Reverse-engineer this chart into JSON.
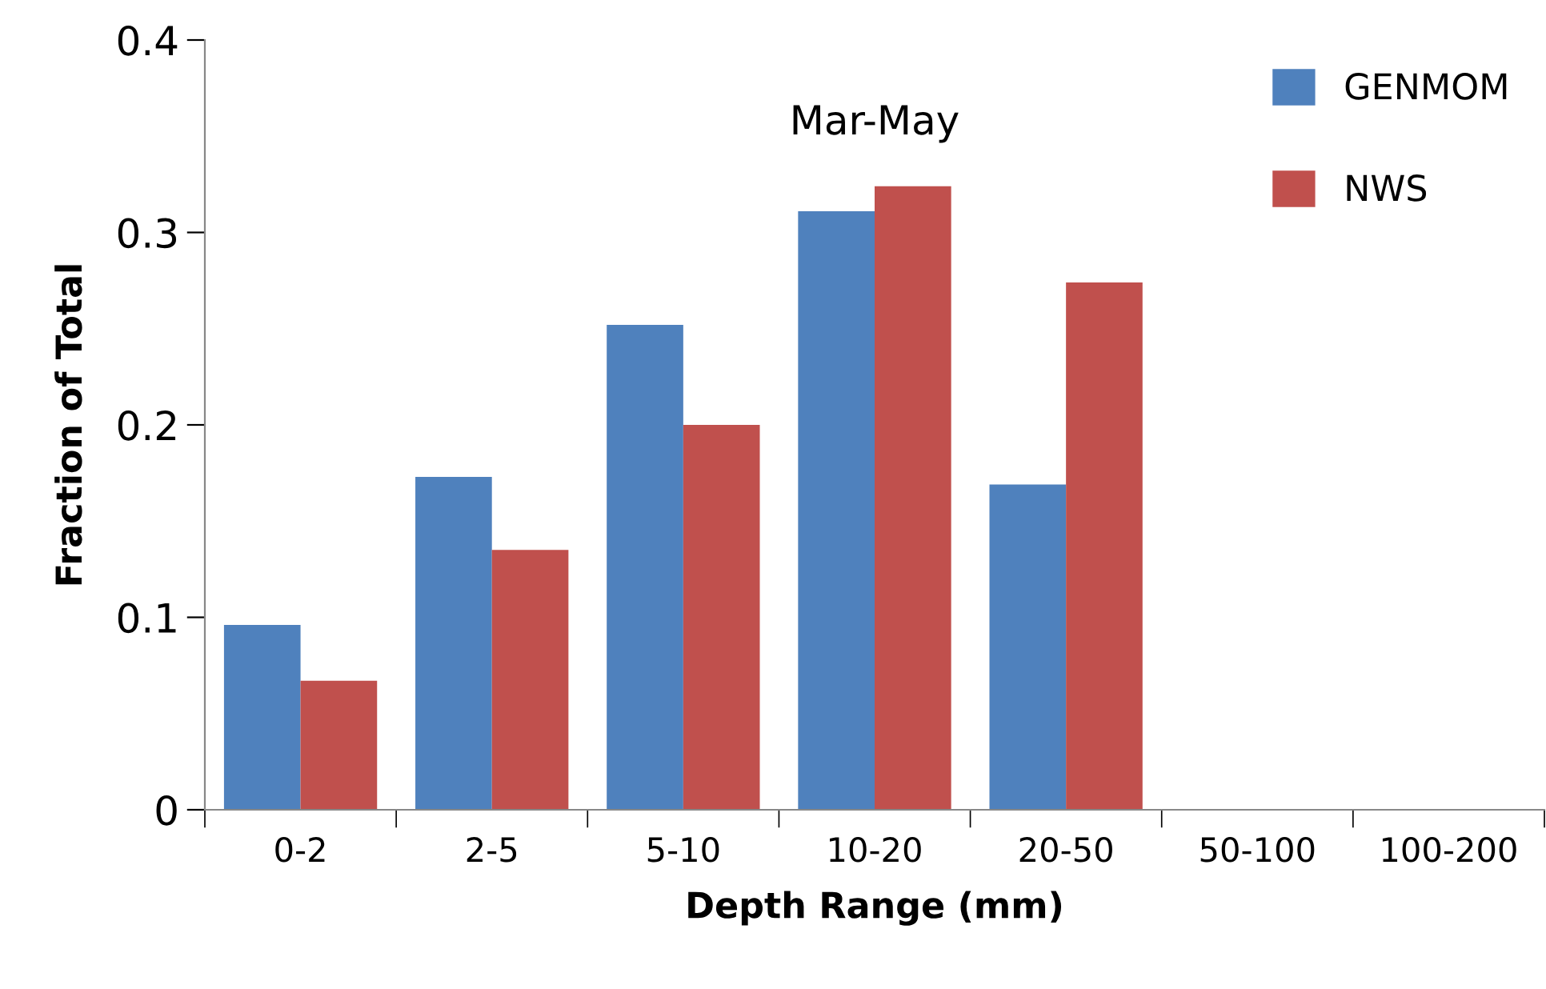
{
  "chart_data": {
    "type": "bar",
    "title": "Mar-May",
    "xlabel": "Depth Range (mm)",
    "ylabel": "Fraction of Total",
    "categories": [
      "0-2",
      "2-5",
      "5-10",
      "10-20",
      "20-50",
      "50-100",
      "100-200"
    ],
    "series": [
      {
        "name": "GENMOM",
        "color": "#4f81bd",
        "values": [
          0.096,
          0.173,
          0.252,
          0.311,
          0.169,
          0,
          0
        ]
      },
      {
        "name": "NWS",
        "color": "#c0504d",
        "values": [
          0.067,
          0.135,
          0.2,
          0.324,
          0.274,
          0,
          0
        ]
      }
    ],
    "ylim": [
      0,
      0.4
    ],
    "yticks": [
      {
        "value": 0,
        "label": "0"
      },
      0.1,
      0.2,
      0.3,
      0.4
    ],
    "grid": false,
    "legend": "top right"
  }
}
